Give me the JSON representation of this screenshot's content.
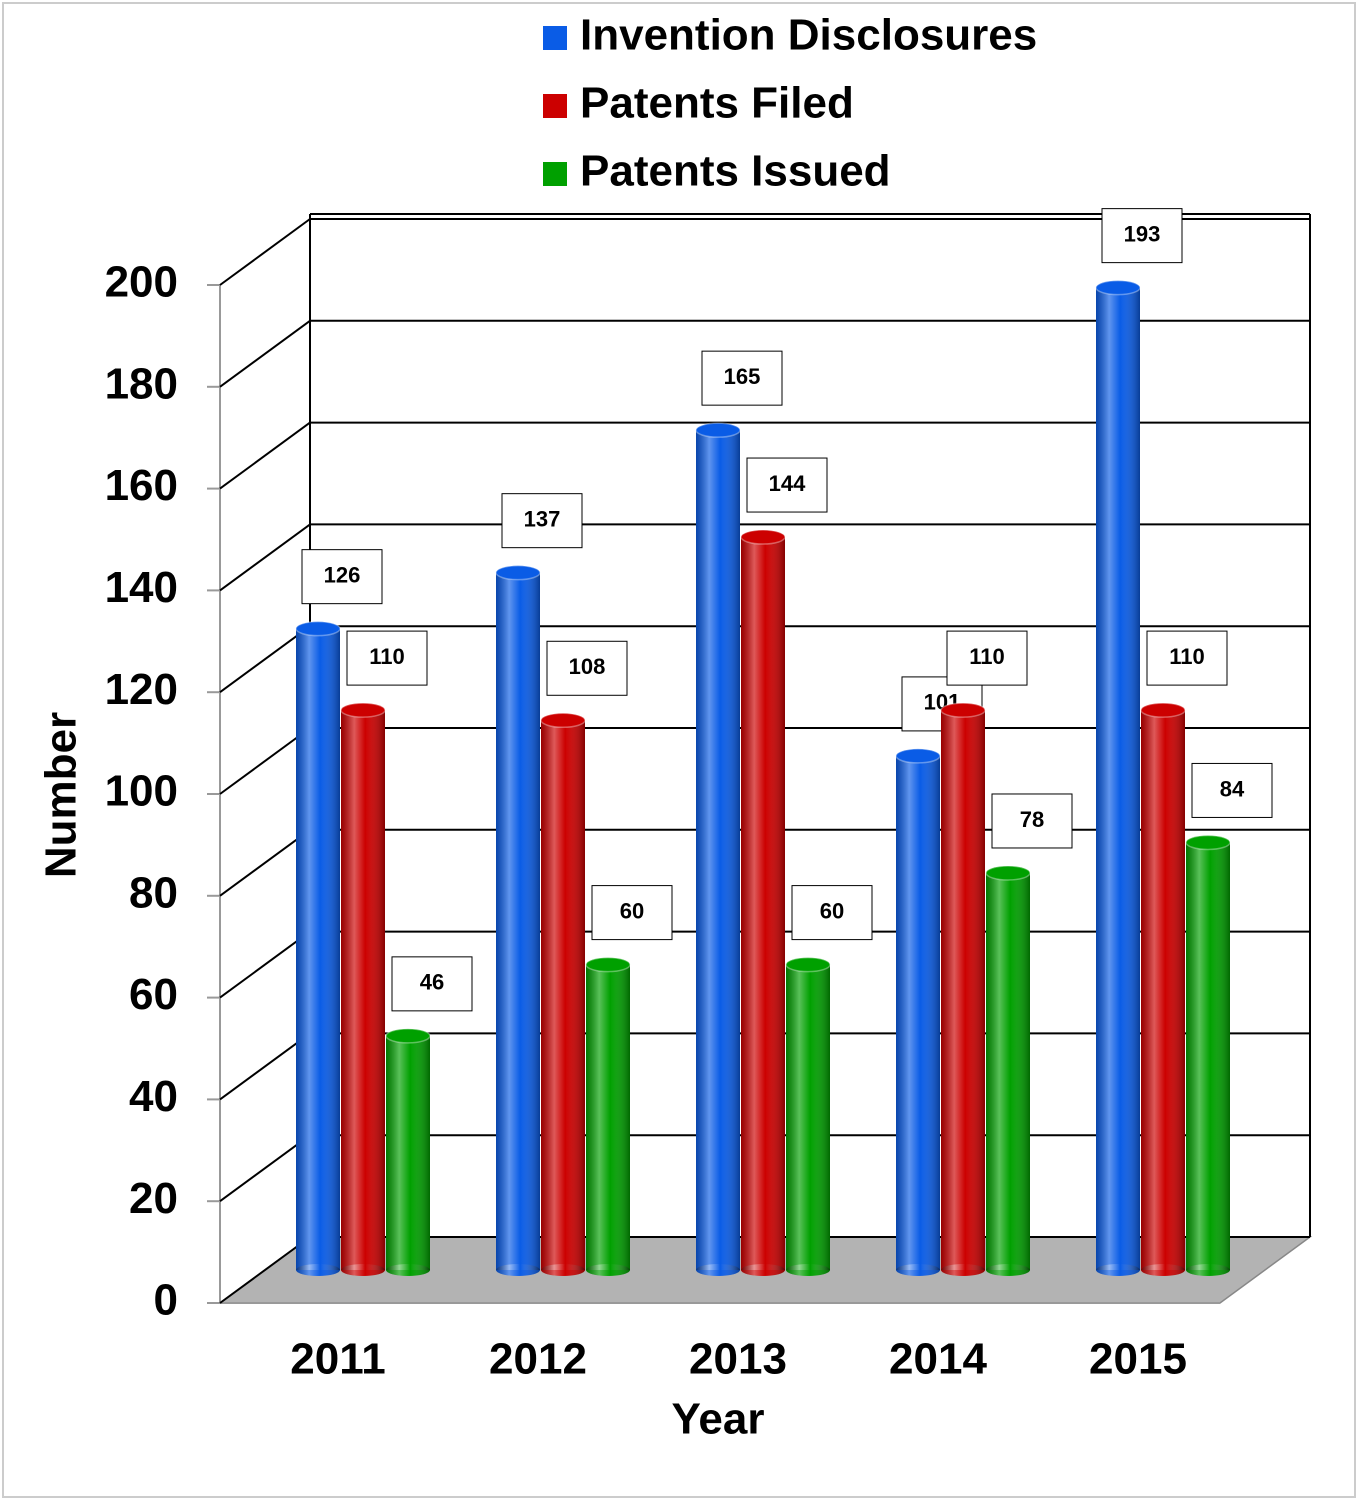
{
  "chart_data": {
    "type": "bar3d",
    "x_label": "Year",
    "y_label": "Number",
    "categories": [
      "2011",
      "2012",
      "2013",
      "2014",
      "2015"
    ],
    "series": [
      {
        "name": "Invention Disclosures",
        "color": "#0a5ce6",
        "values": [
          126,
          137,
          165,
          101,
          193
        ]
      },
      {
        "name": "Patents Filed",
        "color": "#cc0000",
        "values": [
          110,
          108,
          144,
          110,
          110
        ]
      },
      {
        "name": "Patents Issued",
        "color": "#00a000",
        "values": [
          46,
          60,
          60,
          78,
          84
        ]
      }
    ],
    "ylim": [
      0,
      200
    ],
    "yticks": [
      0,
      20,
      40,
      60,
      80,
      100,
      120,
      140,
      160,
      180,
      200
    ],
    "grid": true,
    "legend": "top"
  }
}
